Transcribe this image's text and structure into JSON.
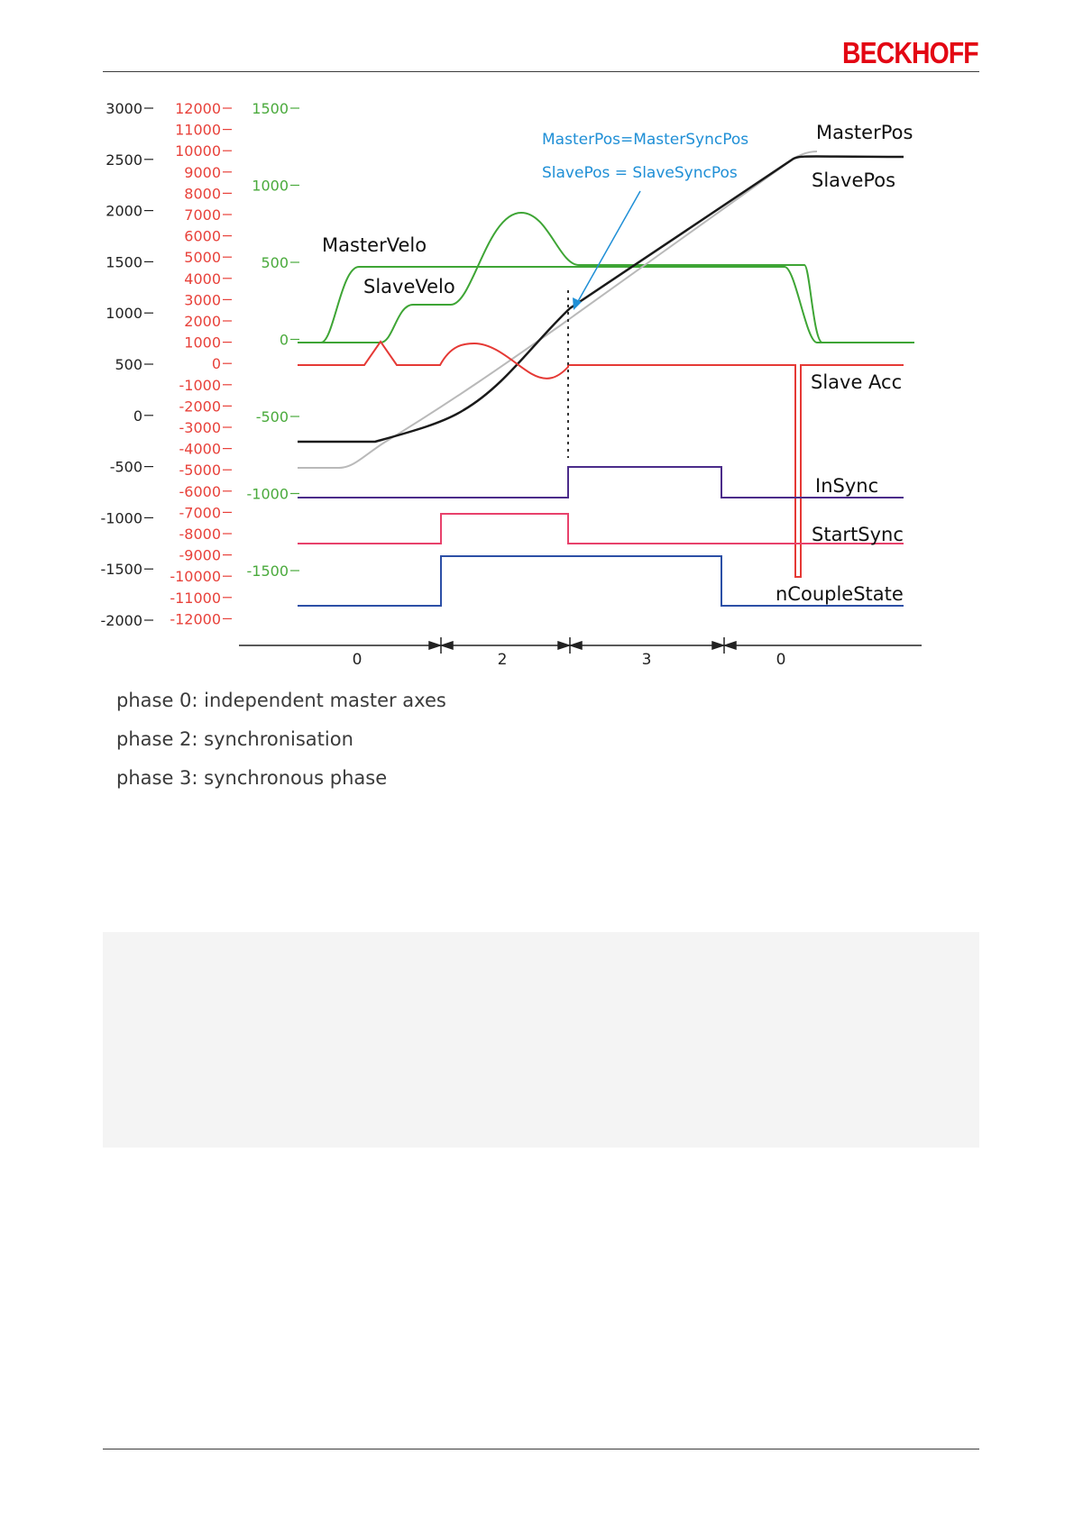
{
  "header": {
    "logo_text": "BECKHOFF",
    "logo_color": "#e30613"
  },
  "diagram": {
    "axis_pos": [
      "3000",
      "2500",
      "2000",
      "1500",
      "1000",
      "500",
      "0",
      "-500",
      "-1000",
      "-1500",
      "-2000"
    ],
    "axis_acc": [
      "12000",
      "11000",
      "10000",
      "9000",
      "8000",
      "7000",
      "6000",
      "5000",
      "4000",
      "3000",
      "2000",
      "1000",
      "0",
      "-1000",
      "-2000",
      "-3000",
      "-4000",
      "-5000",
      "-6000",
      "-7000",
      "-8000",
      "-9000",
      "-10000",
      "-11000",
      "-12000"
    ],
    "axis_velo": [
      "1500",
      "1000",
      "500",
      "0",
      "-500",
      "-1000",
      "-1500"
    ],
    "labels": {
      "master_pos": "MasterPos",
      "slave_pos": "SlavePos",
      "master_velo": "MasterVelo",
      "slave_velo": "SlaveVelo",
      "slave_acc": "Slave Acc",
      "in_sync": "InSync",
      "start_sync": "StartSync",
      "couple_state": "nCoupleState"
    },
    "annotations": {
      "sync_master": "MasterPos=MasterSyncPos",
      "sync_slave": "SlavePos = SlaveSyncPos"
    },
    "phases": [
      "0",
      "2",
      "3",
      "0"
    ],
    "colors": {
      "pos_axis": "#222222",
      "acc_axis": "#e8413a",
      "velo_axis": "#4aaa3c",
      "annotation": "#1f8fd6",
      "master_pos": "#b9b9b9",
      "slave_pos": "#1a1a1a",
      "velo": "#3ea535",
      "acc": "#e53935",
      "in_sync": "#4b2c8a",
      "start_sync": "#e8416b",
      "couple_state": "#2c4fa6"
    }
  },
  "phase_notes": [
    "phase 0: independent master axes",
    "phase 2: synchronisation",
    "phase 3: synchronous phase"
  ]
}
